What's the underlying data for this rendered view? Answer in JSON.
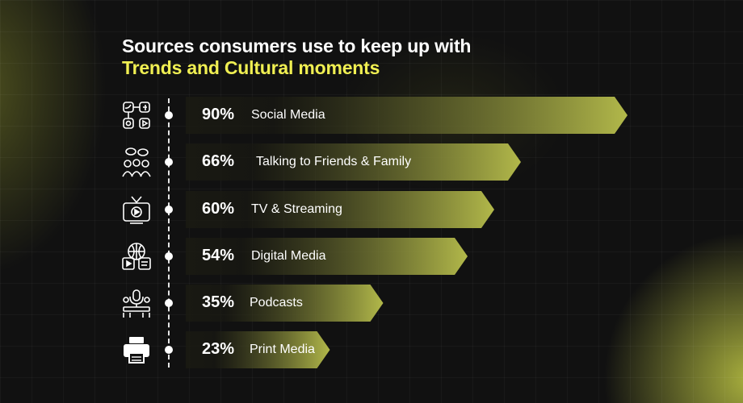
{
  "title_line1": "Sources consumers use to keep up with",
  "title_line2": "Trends and Cultural moments",
  "colors": {
    "title_accent": "#f0ef52",
    "bar_start": "#1a1a12",
    "bar_end": "#b2b84a",
    "background": "#111111"
  },
  "chart_data": {
    "type": "bar",
    "orientation": "horizontal",
    "xlim": [
      0,
      100
    ],
    "grid": false,
    "categories": [
      "Social Media",
      "Talking to Friends & Family",
      "TV & Streaming",
      "Digital Media",
      "Podcasts",
      "Print Media"
    ],
    "values": [
      90,
      66,
      60,
      54,
      35,
      23
    ],
    "value_labels": [
      "90%",
      "66%",
      "60%",
      "54%",
      "35%",
      "23%"
    ],
    "icons": [
      "social-media-icon",
      "friends-family-icon",
      "tv-streaming-icon",
      "digital-media-icon",
      "podcasts-icon",
      "print-media-icon"
    ]
  }
}
